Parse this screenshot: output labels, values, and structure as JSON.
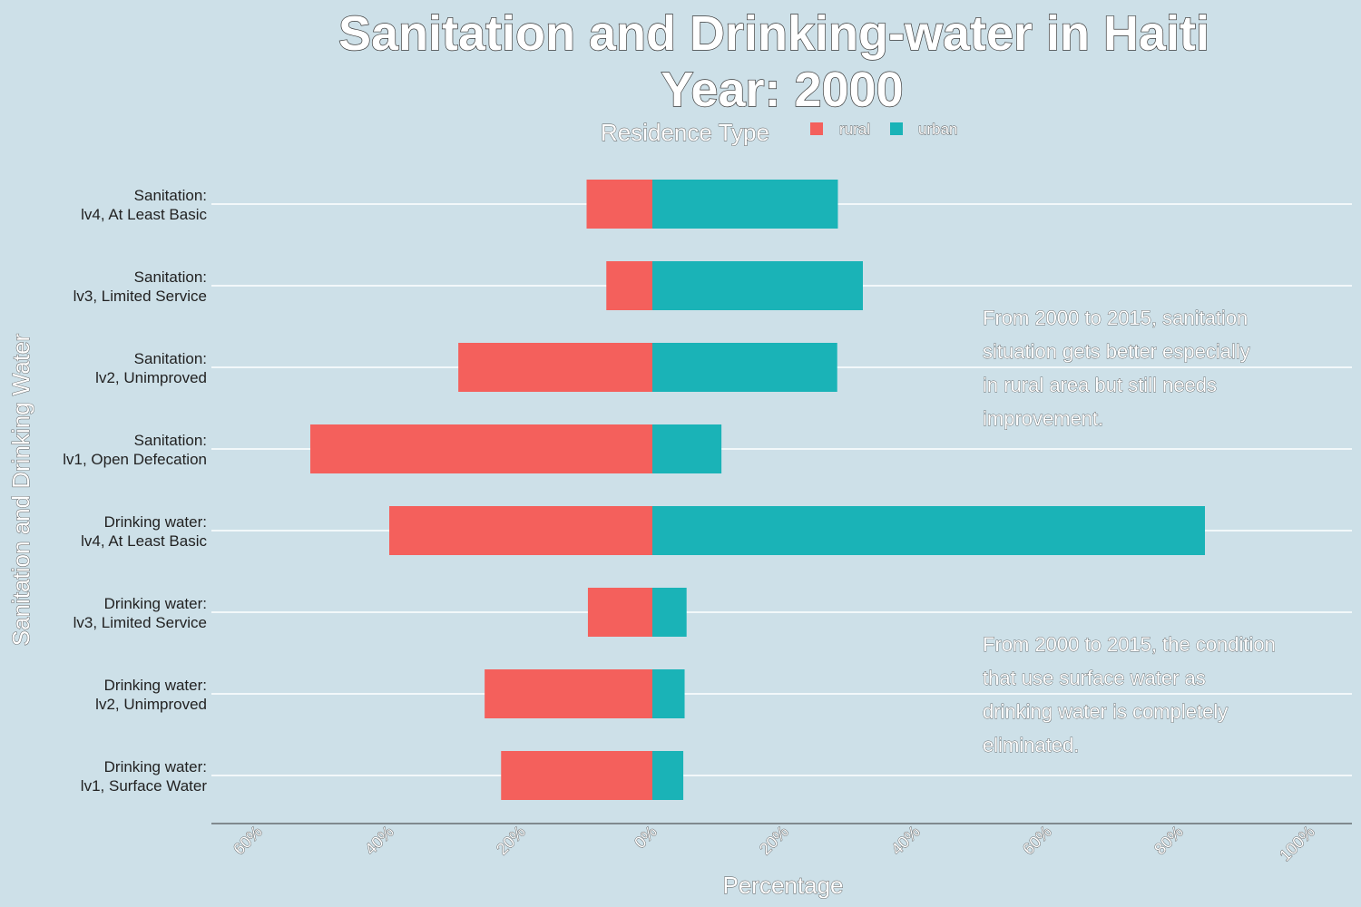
{
  "chart_data": {
    "type": "bar",
    "orientation": "horizontal",
    "title": "Sanitation and Drinking-water in Haiti",
    "subtitle": "Year: 2000",
    "xlabel": "Percentage",
    "ylabel": "Sanitation and Drinking Water",
    "legend": {
      "title": "Residence Type",
      "position": "top",
      "entries": [
        "rural",
        "urban"
      ]
    },
    "xlim": [
      -60,
      100
    ],
    "x_ticks": [
      -60,
      -40,
      -20,
      0,
      20,
      40,
      60,
      80,
      100
    ],
    "x_tick_labels": [
      "60%",
      "40%",
      "20%",
      "0%",
      "20%",
      "40%",
      "60%",
      "80%",
      "100%"
    ],
    "grid": "horizontal",
    "categories": [
      [
        "Sanitation:",
        "lv4, At Least Basic"
      ],
      [
        "Sanitation:",
        "lv3, Limited Service"
      ],
      [
        "Sanitation:",
        "lv2, Unimproved"
      ],
      [
        "Sanitation:",
        "lv1, Open Defecation"
      ],
      [
        "Drinking water:",
        "lv4, At Least Basic"
      ],
      [
        "Drinking water:",
        "lv3, Limited Service"
      ],
      [
        "Drinking water:",
        "lv2, Unimproved"
      ],
      [
        "Drinking water:",
        "lv1, Surface Water"
      ]
    ],
    "series": [
      {
        "name": "rural",
        "color": "#f4605c",
        "values": [
          10.0,
          7.0,
          29.5,
          52.0,
          40.0,
          9.8,
          25.5,
          23.0
        ]
      },
      {
        "name": "urban",
        "color": "#1ab3b7",
        "values": [
          28.2,
          32.0,
          28.1,
          10.5,
          84.0,
          5.2,
          4.9,
          4.7
        ]
      }
    ],
    "annotations": [
      [
        "From 2000 to 2015, sanitation",
        "situation gets better especially",
        "in rural area but still needs",
        "improvement."
      ],
      [
        "From 2000 to 2015, the condition",
        "that use surface water as",
        "drinking water is completely",
        "eliminated."
      ]
    ]
  }
}
